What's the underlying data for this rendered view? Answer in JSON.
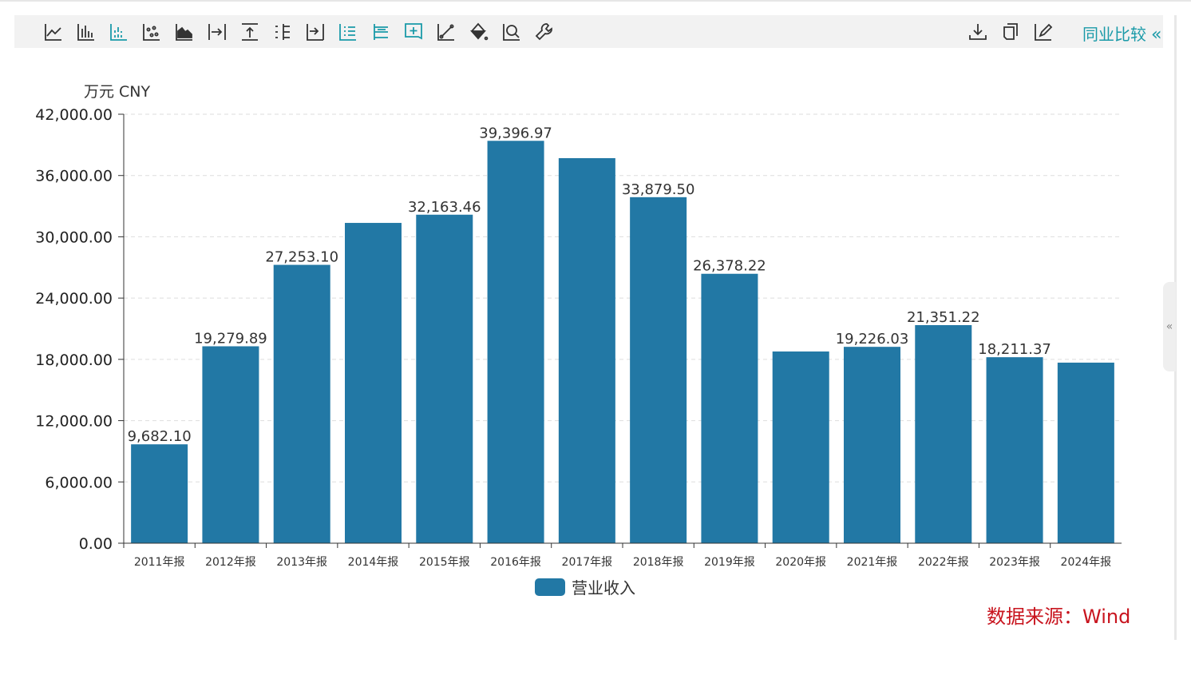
{
  "toolbar": {
    "left_icons": [
      "line-chart-icon",
      "bar-chart-icon",
      "stacked-bar-icon",
      "scatter-icon",
      "area-chart-icon",
      "align-right-icon",
      "align-top-icon",
      "axis-labels-icon",
      "align-bottom-icon",
      "list-icon",
      "tree-list-icon",
      "add-box-icon",
      "trend-line-icon",
      "fill-color-icon",
      "zoom-icon",
      "wrench-icon"
    ],
    "active_icons": [
      "stacked-bar-icon",
      "list-icon",
      "tree-list-icon",
      "add-box-icon"
    ],
    "right_icons": [
      "download-icon",
      "copy-icon",
      "edit-icon"
    ],
    "compare_label": "同业比较",
    "compare_chevron": "«",
    "accent_color": "#1a9aa8"
  },
  "side_handle": "«",
  "chart_data": {
    "type": "bar",
    "unit_label": "万元  CNY",
    "categories": [
      "2011年报",
      "2012年报",
      "2013年报",
      "2014年报",
      "2015年报",
      "2016年报",
      "2017年报",
      "2018年报",
      "2019年报",
      "2020年报",
      "2021年报",
      "2022年报",
      "2023年报",
      "2024年报"
    ],
    "series": [
      {
        "name": "营业收入",
        "color": "#2278a5",
        "values": [
          9682.1,
          19279.89,
          27253.1,
          31360,
          32163.46,
          39396.97,
          37700,
          33879.5,
          26378.22,
          18770,
          19226.03,
          21351.22,
          18211.37,
          17680
        ],
        "labels": [
          "9,682.10",
          "19,279.89",
          "27,253.10",
          "",
          "32,163.46",
          "39,396.97",
          "",
          "33,879.50",
          "26,378.22",
          "",
          "19,226.03",
          "21,351.22",
          "18,211.37",
          ""
        ]
      }
    ],
    "yticks": [
      "0.00",
      "6,000.00",
      "12,000.00",
      "18,000.00",
      "24,000.00",
      "30,000.00",
      "36,000.00",
      "42,000.00"
    ],
    "ylim": [
      0,
      42000
    ],
    "grid": true,
    "legend_position": "bottom"
  },
  "source": "数据来源：Wind"
}
